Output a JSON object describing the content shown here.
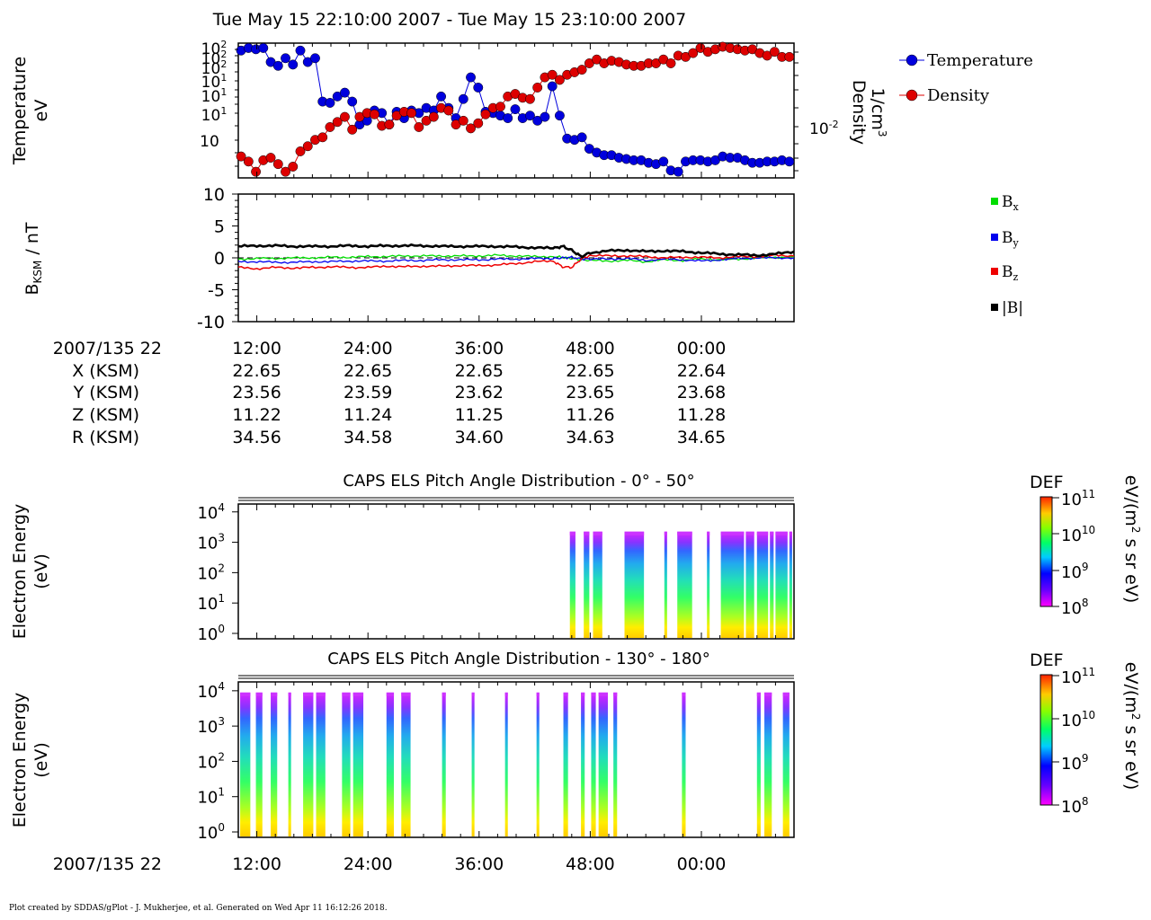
{
  "title": "Tue May 15 22:10:00 2007 - Tue May 15 23:10:00 2007",
  "footer": "Plot created by SDDAS/gPlot - J. Mukherjee, et al.  Generated on Wed Apr 11 16:12:26 2018.",
  "time_tick_labels": [
    "12:00",
    "24:00",
    "36:00",
    "48:00",
    "00:00"
  ],
  "ephemeris": {
    "header_label": "2007/135 22",
    "rows": [
      {
        "label": "X (KSM)",
        "values": [
          "22.65",
          "22.65",
          "22.65",
          "22.65",
          "22.64"
        ]
      },
      {
        "label": "Y (KSM)",
        "values": [
          "23.56",
          "23.59",
          "23.62",
          "23.65",
          "23.68"
        ]
      },
      {
        "label": "Z (KSM)",
        "values": [
          "11.22",
          "11.24",
          "11.25",
          "11.26",
          "11.28"
        ]
      },
      {
        "label": "R (KSM)",
        "values": [
          "34.56",
          "34.58",
          "34.60",
          "34.63",
          "34.65"
        ]
      }
    ]
  },
  "bottom_axis_label": "2007/135 22",
  "colors": {
    "temperature": "#0000dd",
    "density": "#dd0000",
    "bx": "#00dd00",
    "by": "#0000ee",
    "bz": "#ee0000",
    "btotal": "#000000"
  },
  "chart_data": [
    {
      "type": "scatter",
      "panel": "moments",
      "ylabel": "Temperature eV",
      "ylabel_lines": [
        "Temperature",
        "eV"
      ],
      "ylabel_right": "Density 1/cm3",
      "ylabel_right_lines": [
        "Density",
        "1/cm"
      ],
      "ylabel_right_sup": "3",
      "left_tick_labels": [
        "10",
        "10",
        "10",
        "10",
        "10",
        "10",
        "10"
      ],
      "left_tick_sups": [
        "2",
        "2",
        "2",
        "1",
        "1",
        "1",
        ""
      ],
      "right_tick_label": "10",
      "right_tick_sup": "-2",
      "legend": [
        {
          "name": "Temperature",
          "color": "#0000dd"
        },
        {
          "name": "Density",
          "color": "#dd0000"
        }
      ],
      "x_minutes": [
        0.3,
        1.1,
        1.9,
        2.7,
        3.5,
        4.3,
        5.1,
        5.9,
        6.7,
        7.5,
        8.3,
        9.1,
        9.9,
        10.7,
        11.5,
        12.3,
        13.1,
        13.9,
        14.7,
        15.5,
        16.3,
        17.1,
        17.9,
        18.7,
        19.5,
        20.3,
        21.1,
        21.9,
        22.7,
        23.5,
        24.3,
        25.1,
        25.9,
        26.7,
        27.5,
        28.3,
        29.1,
        29.9,
        30.7,
        31.5,
        32.3,
        33.1,
        33.9,
        34.7,
        35.5,
        36.3,
        37.1,
        37.9,
        38.7,
        39.5,
        40.3,
        41.1,
        41.9,
        42.7,
        43.5,
        44.3,
        45.1,
        45.9,
        46.7,
        47.5,
        48.3,
        49.1,
        49.9,
        50.7,
        51.5,
        52.3,
        53.1,
        53.9,
        54.7,
        55.5,
        56.3,
        57.1,
        57.9,
        58.7,
        59.5
      ],
      "temperature_norm": [
        0.97,
        0.99,
        0.98,
        0.99,
        0.88,
        0.85,
        0.91,
        0.86,
        0.97,
        0.88,
        0.91,
        0.57,
        0.56,
        0.61,
        0.64,
        0.57,
        0.39,
        0.42,
        0.5,
        0.48,
        0.39,
        0.49,
        0.44,
        0.5,
        0.48,
        0.52,
        0.5,
        0.61,
        0.52,
        0.44,
        0.59,
        0.76,
        0.68,
        0.49,
        0.48,
        0.46,
        0.44,
        0.51,
        0.44,
        0.46,
        0.42,
        0.45,
        0.69,
        0.46,
        0.28,
        0.27,
        0.29,
        0.2,
        0.17,
        0.15,
        0.15,
        0.13,
        0.12,
        0.11,
        0.11,
        0.09,
        0.08,
        0.1,
        0.03,
        0.02,
        0.1,
        0.11,
        0.11,
        0.1,
        0.11,
        0.14,
        0.13,
        0.13,
        0.11,
        0.09,
        0.09,
        0.1,
        0.1,
        0.11,
        0.1
      ],
      "density_norm": [
        0.14,
        0.1,
        0.02,
        0.11,
        0.13,
        0.08,
        0.02,
        0.06,
        0.18,
        0.22,
        0.27,
        0.29,
        0.37,
        0.41,
        0.45,
        0.35,
        0.45,
        0.48,
        0.47,
        0.38,
        0.39,
        0.46,
        0.49,
        0.48,
        0.37,
        0.42,
        0.45,
        0.52,
        0.5,
        0.39,
        0.42,
        0.36,
        0.4,
        0.47,
        0.52,
        0.53,
        0.61,
        0.63,
        0.6,
        0.59,
        0.68,
        0.76,
        0.78,
        0.74,
        0.78,
        0.8,
        0.82,
        0.87,
        0.9,
        0.87,
        0.89,
        0.88,
        0.86,
        0.85,
        0.85,
        0.87,
        0.87,
        0.9,
        0.87,
        0.93,
        0.92,
        0.95,
        0.99,
        0.96,
        0.98,
        1.0,
        0.99,
        0.98,
        0.97,
        0.98,
        0.95,
        0.93,
        0.96,
        0.92,
        0.92
      ]
    },
    {
      "type": "line",
      "panel": "magnetic_field",
      "ylabel": "BKSM / nT",
      "ylabel_main": "B",
      "ylabel_sub": "KSM",
      "ylabel_tail": " / nT",
      "ylim": [
        -10,
        10
      ],
      "y_ticks": [
        10,
        5,
        0,
        -5,
        -10
      ],
      "y_tick_labels": [
        "10",
        "5",
        "0",
        "-5",
        "-10"
      ],
      "legend": [
        {
          "name": "B",
          "sub": "x",
          "color": "#00dd00"
        },
        {
          "name": "B",
          "sub": "y",
          "color": "#0000ee"
        },
        {
          "name": "B",
          "sub": "z",
          "color": "#ee0000"
        },
        {
          "name": "|B|",
          "sub": "",
          "color": "#000000"
        }
      ],
      "x_minutes": [
        0,
        2,
        4,
        6,
        8,
        10,
        12,
        14,
        16,
        18,
        20,
        22,
        24,
        26,
        28,
        30,
        32,
        34,
        35,
        36,
        37,
        38,
        40,
        42,
        44,
        46,
        48,
        50,
        52,
        54,
        56,
        58,
        60
      ],
      "series": [
        {
          "name": "Bx",
          "values": [
            -0.2,
            -0.1,
            -0.1,
            0,
            0,
            0.1,
            0.1,
            0.2,
            0.2,
            0.3,
            0.3,
            0.3,
            0.3,
            0.3,
            0.4,
            0.3,
            0.2,
            0.2,
            0.1,
            -0.1,
            -0.3,
            -0.4,
            -0.5,
            -0.4,
            -0.6,
            -0.3,
            -0.4,
            -0.2,
            -0.3,
            -0.2,
            0,
            0.1,
            0.1
          ]
        },
        {
          "name": "By",
          "values": [
            -0.6,
            -0.6,
            -0.7,
            -0.7,
            -0.6,
            -0.6,
            -0.5,
            -0.5,
            -0.5,
            -0.4,
            -0.4,
            -0.3,
            -0.3,
            -0.3,
            -0.2,
            -0.2,
            -0.1,
            -0.1,
            0,
            0.1,
            -0.2,
            -0.2,
            -0.2,
            -0.1,
            -0.4,
            -0.2,
            -0.3,
            -0.5,
            -0.3,
            -0.1,
            0,
            0,
            0
          ]
        },
        {
          "name": "Bz",
          "values": [
            -1.5,
            -1.7,
            -1.5,
            -1.6,
            -1.5,
            -1.4,
            -1.5,
            -1.5,
            -1.3,
            -1.4,
            -1.3,
            -1.3,
            -1.2,
            -1.2,
            -1.1,
            -0.9,
            -0.6,
            -0.5,
            -1.4,
            -1.5,
            -0.2,
            0.4,
            0.3,
            0.3,
            0.2,
            0,
            0.1,
            0.1,
            0,
            0.2,
            0.2,
            0.4,
            0.3
          ]
        },
        {
          "name": "|B|",
          "values": [
            1.8,
            1.9,
            1.9,
            1.8,
            1.8,
            1.8,
            1.9,
            1.8,
            1.9,
            1.9,
            1.9,
            1.8,
            1.8,
            1.8,
            1.8,
            1.7,
            1.6,
            1.5,
            1.8,
            1.2,
            0.2,
            0.8,
            1.1,
            1.2,
            1.0,
            1.1,
            1.0,
            0.8,
            0.6,
            0.5,
            0.4,
            0.6,
            1.0
          ]
        }
      ]
    },
    {
      "type": "heatmap",
      "panel": "els_0_50",
      "title": "CAPS ELS Pitch Angle Distribution - 0° - 50°",
      "ylabel": "Electron Energy (eV)",
      "ylabel_lines": [
        "Electron Energy",
        "(eV)"
      ],
      "y_tick_labels": [
        "10",
        "10",
        "10",
        "10",
        "10"
      ],
      "y_tick_sups": [
        "4",
        "3",
        "2",
        "1",
        "0"
      ],
      "colorbar": {
        "label": "DEF",
        "units": "eV/(m2 s sr eV)",
        "units_main": "eV/(m",
        "units_sup": "2",
        "units_tail": " s sr eV)",
        "tick_labels": [
          "10",
          "10",
          "10",
          "10"
        ],
        "tick_sups": [
          "11",
          "10",
          "9",
          "8"
        ]
      },
      "blocks_minutes": [
        [
          35.8,
          36.4
        ],
        [
          37.3,
          37.9
        ],
        [
          38.3,
          39.3
        ],
        [
          41.7,
          43.8
        ],
        [
          46.0,
          46.3
        ],
        [
          47.4,
          49.0
        ],
        [
          50.6,
          50.8
        ],
        [
          52.1,
          54.6
        ],
        [
          54.8,
          55.7
        ],
        [
          56.0,
          57.2
        ],
        [
          57.4,
          57.8
        ],
        [
          58.0,
          59.3
        ],
        [
          59.5,
          59.8
        ]
      ]
    },
    {
      "type": "heatmap",
      "panel": "els_130_180",
      "title": "CAPS ELS Pitch Angle Distribution - 130° - 180°",
      "ylabel": "Electron Energy (eV)",
      "ylabel_lines": [
        "Electron Energy",
        "(eV)"
      ],
      "y_tick_labels": [
        "10",
        "10",
        "10",
        "10",
        "10"
      ],
      "y_tick_sups": [
        "4",
        "3",
        "2",
        "1",
        "0"
      ],
      "colorbar": {
        "label": "DEF",
        "units": "eV/(m2 s sr eV)",
        "units_main": "eV/(m",
        "units_sup": "2",
        "units_tail": " s sr eV)",
        "tick_labels": [
          "10",
          "10",
          "10",
          "10"
        ],
        "tick_sups": [
          "11",
          "10",
          "9",
          "8"
        ]
      },
      "blocks_minutes": [
        [
          0.2,
          1.3
        ],
        [
          1.9,
          2.6
        ],
        [
          3.5,
          4.2
        ],
        [
          5.4,
          5.7
        ],
        [
          7.0,
          8.1
        ],
        [
          8.4,
          9.4
        ],
        [
          11.2,
          12.1
        ],
        [
          12.4,
          13.5
        ],
        [
          16.0,
          16.8
        ],
        [
          17.6,
          18.6
        ],
        [
          22.0,
          22.4
        ],
        [
          25.2,
          25.5
        ],
        [
          28.8,
          29.1
        ],
        [
          32.2,
          32.5
        ],
        [
          35.1,
          35.6
        ],
        [
          37.0,
          37.4
        ],
        [
          38.1,
          38.6
        ],
        [
          38.9,
          39.9
        ],
        [
          40.5,
          40.9
        ],
        [
          47.9,
          48.3
        ],
        [
          56.0,
          56.4
        ],
        [
          56.8,
          57.6
        ],
        [
          58.8,
          59.5
        ]
      ]
    }
  ]
}
